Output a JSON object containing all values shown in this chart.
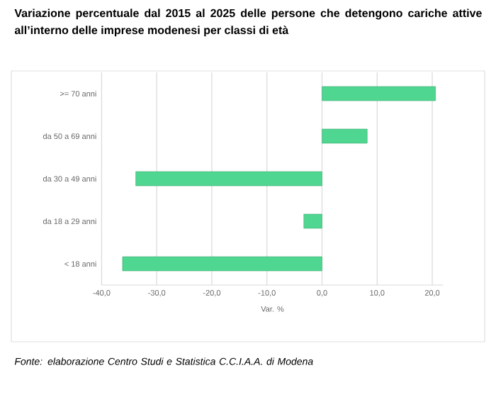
{
  "chart_data": {
    "type": "bar",
    "orientation": "horizontal",
    "title": "Variazione percentuale dal 2015 al 2025 delle persone che detengono cariche attive all’interno delle imprese modenesi per classi di età",
    "categories": [
      ">= 70 anni",
      "da 50 a 69 anni",
      "da 30 a 49 anni",
      "da 18 a 29 anni",
      "< 18 anni"
    ],
    "values": [
      20.6,
      8.2,
      -33.8,
      -3.3,
      -36.2
    ],
    "color": "#4fd690",
    "xlim": [
      -40,
      22
    ],
    "xticks": [
      {
        "value": -40,
        "label": "-40,0"
      },
      {
        "value": -30,
        "label": "-30,0"
      },
      {
        "value": -20,
        "label": "-20,0"
      },
      {
        "value": -10,
        "label": "-10,0"
      },
      {
        "value": 0,
        "label": "0,0"
      },
      {
        "value": 10,
        "label": "10,0"
      },
      {
        "value": 20,
        "label": "20,0"
      }
    ],
    "xlabel": "Var. %",
    "grid": "x",
    "annotations": [
      "Fonte: elaborazione Centro Studi e Statistica C.C.I.A.A. di Modena"
    ]
  }
}
